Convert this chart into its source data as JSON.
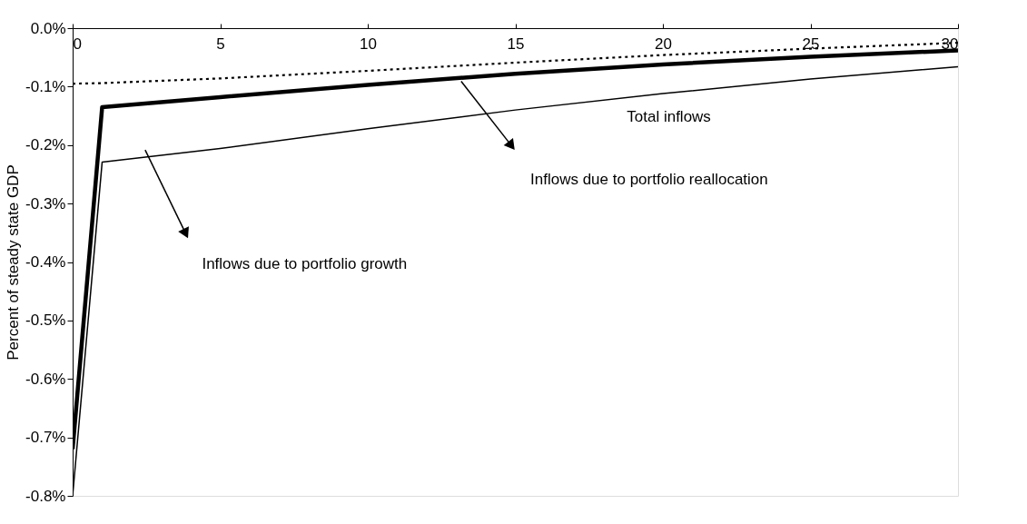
{
  "chart_data": {
    "type": "line",
    "ylabel": "Percent of steady state GDP",
    "x": [
      0,
      1,
      5,
      10,
      15,
      20,
      25,
      30
    ],
    "series": [
      {
        "color": "#000000",
        "line_style": "solid",
        "values": [
          -0.72,
          -0.135,
          -0.118,
          -0.097,
          -0.078,
          -0.062,
          -0.049,
          -0.038
        ]
      },
      {
        "color": "#000000",
        "line_style": "solid",
        "values": [
          -0.8,
          -0.229,
          -0.206,
          -0.172,
          -0.14,
          -0.112,
          -0.087,
          -0.066
        ]
      },
      {
        "color": "#000000",
        "line_style": "dotted",
        "values": [
          -0.095,
          -0.094,
          -0.086,
          -0.073,
          -0.059,
          -0.046,
          -0.035,
          -0.025
        ]
      }
    ],
    "xlim": [
      0,
      30
    ],
    "xticks": [
      0,
      5,
      10,
      15,
      20,
      25,
      30
    ],
    "ylim": [
      -0.8,
      0
    ],
    "yticks": [
      {
        "value": 0,
        "label": "0.0%"
      },
      {
        "value": -0.1,
        "label": "-0.1%"
      },
      {
        "value": -0.2,
        "label": "-0.2%"
      },
      {
        "value": -0.3,
        "label": "-0.3%"
      },
      {
        "value": -0.4,
        "label": "-0.4%"
      },
      {
        "value": -0.5,
        "label": "-0.5%"
      },
      {
        "value": -0.6,
        "label": "-0.6%"
      },
      {
        "value": -0.7,
        "label": "-0.7%"
      },
      {
        "value": -0.8,
        "label": "-0.8%"
      }
    ],
    "annotations": [
      "Total inflows",
      "Inflows due to portfolio reallocation",
      "Inflows due to portfolio growth"
    ],
    "grid": false,
    "marker": "none"
  }
}
